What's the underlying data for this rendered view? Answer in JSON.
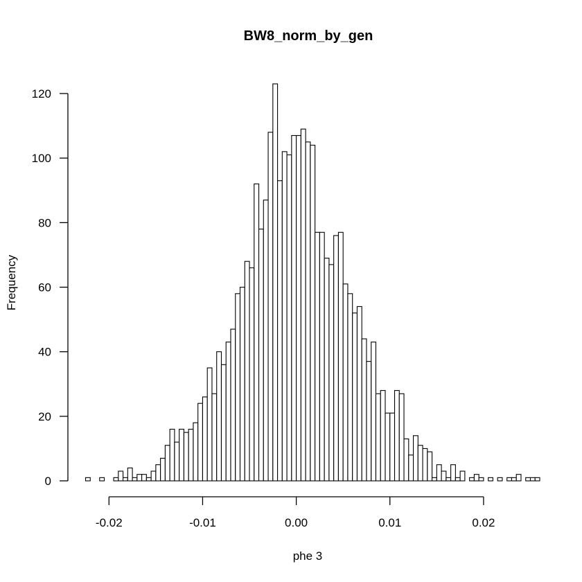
{
  "chart_data": {
    "type": "bar",
    "title": "BW8_norm_by_gen",
    "xlabel": "phe 3",
    "ylabel": "Frequency",
    "xlim": [
      -0.0225,
      0.025
    ],
    "ylim": [
      0,
      120
    ],
    "bin_start": -0.0225,
    "bin_width": 0.0005,
    "x_ticks": [
      -0.02,
      -0.01,
      0.0,
      0.01,
      0.02
    ],
    "x_tick_labels": [
      "-0.02",
      "-0.01",
      "0.00",
      "0.01",
      "0.02"
    ],
    "y_ticks": [
      0,
      20,
      40,
      60,
      80,
      100,
      120
    ],
    "y_tick_labels": [
      "0",
      "20",
      "40",
      "60",
      "80",
      "100",
      "120"
    ],
    "grid": false,
    "values": [
      1,
      0,
      0,
      1,
      0,
      0,
      1,
      3,
      1,
      4,
      1,
      2,
      2,
      1,
      3,
      5,
      7,
      11,
      16,
      12,
      16,
      15,
      16,
      18,
      24,
      26,
      35,
      27,
      40,
      36,
      43,
      47,
      58,
      60,
      68,
      66,
      92,
      78,
      87,
      108,
      123,
      93,
      102,
      101,
      107,
      107,
      109,
      105,
      104,
      77,
      77,
      69,
      67,
      76,
      77,
      61,
      58,
      52,
      54,
      44,
      37,
      43,
      27,
      28,
      21,
      21,
      28,
      27,
      13,
      8,
      14,
      11,
      10,
      9,
      1,
      5,
      3,
      1,
      5,
      1,
      3,
      0,
      1,
      2,
      1,
      0,
      1,
      0,
      1,
      0,
      1,
      1,
      2,
      0,
      1,
      1,
      1
    ]
  }
}
